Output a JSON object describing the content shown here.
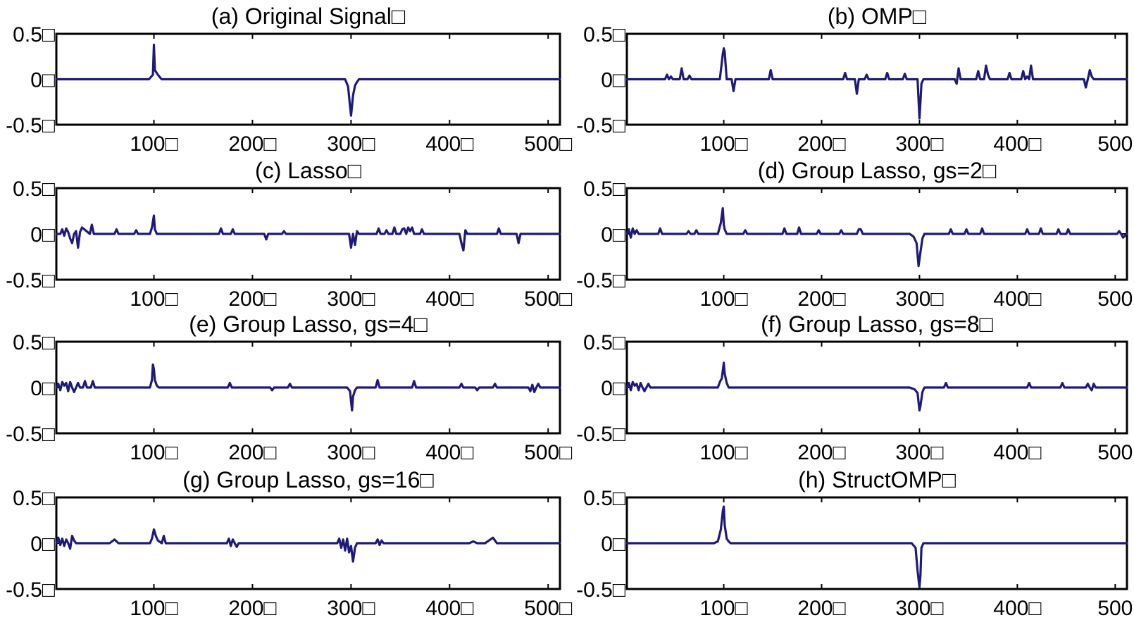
{
  "figure": {
    "line_color": "#1f1a7a",
    "layout": "4 rows x 2 columns"
  },
  "chart_data": [
    {
      "type": "line",
      "title": "(a) Original Signal□",
      "xlim": [
        1,
        512
      ],
      "ylim": [
        -0.5,
        0.5
      ],
      "xticks": [
        "100□",
        "200□",
        "300□",
        "400□",
        "500□"
      ],
      "xtick_values": [
        100,
        200,
        300,
        400,
        500
      ],
      "yticks": [
        "0.5□",
        "0□",
        "-0.5□"
      ],
      "ytick_values": [
        0.5,
        0,
        -0.5
      ],
      "series": [
        {
          "x": [
            1,
            95,
            99,
            100,
            101,
            104,
            107,
            108,
            294,
            297,
            299,
            300,
            302,
            304,
            306,
            308,
            512
          ],
          "values": [
            0,
            0,
            0.05,
            0.38,
            0.1,
            0.05,
            0.01,
            0,
            0,
            -0.08,
            -0.3,
            -0.4,
            -0.18,
            -0.07,
            -0.03,
            0,
            0
          ]
        }
      ]
    },
    {
      "type": "line",
      "title": "(b) OMP□",
      "xlim": [
        1,
        512
      ],
      "ylim": [
        -0.5,
        0.5
      ],
      "xticks": [
        "100□",
        "200□",
        "300□",
        "400□",
        "500"
      ],
      "xtick_values": [
        100,
        200,
        300,
        400,
        500
      ],
      "yticks": [
        "0.5□",
        "0□",
        "-0.5□"
      ],
      "ytick_values": [
        0.5,
        0,
        -0.5
      ],
      "series": [
        {
          "x": [
            1,
            40,
            42,
            44,
            46,
            48,
            55,
            57,
            59,
            63,
            65,
            67,
            96,
            99,
            100,
            101,
            103,
            108,
            110,
            112,
            146,
            148,
            150,
            222,
            224,
            226,
            234,
            236,
            238,
            244,
            246,
            248,
            265,
            267,
            269,
            283,
            285,
            287,
            298,
            300,
            301,
            302,
            304,
            336,
            338,
            340,
            342,
            358,
            360,
            362,
            366,
            368,
            370,
            372,
            390,
            392,
            394,
            404,
            406,
            408,
            410,
            412,
            414,
            416,
            468,
            470,
            472,
            474,
            476,
            478,
            512
          ],
          "values": [
            0,
            0,
            0.05,
            0,
            0.03,
            0,
            0,
            0.12,
            0,
            0,
            0.04,
            0,
            0,
            0.28,
            0.34,
            0.3,
            0,
            0,
            -0.13,
            0,
            0,
            0.1,
            0,
            0,
            0.07,
            0,
            0,
            -0.16,
            0,
            0,
            0.05,
            0,
            0,
            0.07,
            0,
            0,
            0.06,
            0,
            0,
            -0.43,
            -0.25,
            -0.05,
            0,
            0,
            -0.05,
            0.12,
            0,
            0,
            0.09,
            0,
            0,
            0.15,
            0.05,
            0,
            0,
            0.07,
            0,
            0,
            0.09,
            0,
            0.03,
            0,
            0.15,
            0,
            0,
            -0.09,
            0,
            0.1,
            0.03,
            0,
            0
          ]
        }
      ]
    },
    {
      "type": "line",
      "title": "(c) Lasso□",
      "xlim": [
        1,
        512
      ],
      "ylim": [
        -0.5,
        0.5
      ],
      "xticks": [
        "100□",
        "200□",
        "300□",
        "400□",
        "500□"
      ],
      "xtick_values": [
        100,
        200,
        300,
        400,
        500
      ],
      "yticks": [
        "0.5□",
        "0□",
        "-0.5□"
      ],
      "ytick_values": [
        0.5,
        0,
        -0.5
      ],
      "series": [
        {
          "x": [
            1,
            5,
            7,
            9,
            11,
            13,
            15,
            17,
            19,
            21,
            23,
            25,
            27,
            35,
            37,
            39,
            60,
            62,
            64,
            80,
            82,
            84,
            96,
            98,
            100,
            101,
            103,
            166,
            168,
            170,
            178,
            180,
            182,
            212,
            214,
            216,
            230,
            232,
            234,
            298,
            300,
            302,
            304,
            306,
            308,
            326,
            328,
            330,
            334,
            336,
            338,
            342,
            344,
            346,
            350,
            352,
            354,
            356,
            358,
            360,
            362,
            364,
            370,
            372,
            374,
            410,
            412,
            414,
            416,
            418,
            448,
            450,
            452,
            468,
            470,
            472,
            512
          ],
          "values": [
            0,
            0,
            0.05,
            -0.02,
            0.06,
            0.02,
            -0.05,
            -0.1,
            0,
            0.03,
            -0.15,
            0.02,
            0.07,
            0,
            0.1,
            0,
            0,
            0.05,
            0,
            0,
            0.04,
            0,
            0,
            0.07,
            0.2,
            0.05,
            0,
            0,
            0.06,
            0,
            0,
            0.05,
            0,
            0,
            -0.06,
            0,
            0,
            0.03,
            0,
            0,
            -0.15,
            0,
            -0.12,
            0.03,
            0,
            0,
            0.06,
            0,
            0,
            0.04,
            0,
            0,
            0.07,
            0,
            0,
            0.05,
            0.06,
            0,
            0.07,
            0.03,
            0.07,
            0,
            0,
            0.05,
            0,
            0,
            -0.1,
            -0.18,
            0.04,
            0,
            0,
            0.06,
            0,
            0,
            -0.1,
            0,
            0
          ]
        }
      ]
    },
    {
      "type": "line",
      "title": "(d) Group Lasso, gs=2□",
      "xlim": [
        1,
        512
      ],
      "ylim": [
        -0.5,
        0.5
      ],
      "xticks": [
        "100□",
        "200□",
        "300□",
        "400□",
        "500"
      ],
      "xtick_values": [
        100,
        200,
        300,
        400,
        500
      ],
      "yticks": [
        "0.5□",
        "0□",
        "-0.5□"
      ],
      "ytick_values": [
        0.5,
        0,
        -0.5
      ],
      "series": [
        {
          "x": [
            1,
            3,
            5,
            7,
            9,
            11,
            13,
            33,
            35,
            37,
            62,
            64,
            66,
            70,
            72,
            74,
            94,
            97,
            99,
            100,
            101,
            103,
            120,
            122,
            124,
            160,
            162,
            164,
            175,
            177,
            179,
            195,
            197,
            199,
            218,
            220,
            222,
            236,
            238,
            240,
            242,
            290,
            294,
            297,
            299,
            301,
            303,
            305,
            330,
            332,
            334,
            346,
            348,
            350,
            362,
            364,
            366,
            408,
            410,
            412,
            422,
            424,
            426,
            440,
            442,
            444,
            450,
            452,
            454,
            502,
            504,
            506,
            508,
            512
          ],
          "values": [
            0,
            0.05,
            -0.04,
            0.06,
            0,
            0.04,
            0,
            0,
            0.06,
            0,
            0,
            0.03,
            0,
            0,
            0.04,
            0,
            0,
            0.12,
            0.28,
            0.1,
            0.05,
            0,
            0,
            0.04,
            0,
            0,
            0.06,
            0,
            0,
            0.07,
            0,
            0,
            0.04,
            0,
            0,
            0.04,
            0,
            0,
            0.05,
            0.05,
            0,
            0,
            -0.03,
            -0.1,
            -0.35,
            -0.2,
            -0.05,
            0,
            0,
            0.05,
            0,
            0,
            0.05,
            0,
            0,
            0.06,
            0,
            0,
            0.05,
            0,
            0,
            0.06,
            0,
            0,
            0.05,
            0,
            0,
            0.05,
            0,
            0,
            0.03,
            0,
            -0.04,
            0
          ]
        }
      ]
    },
    {
      "type": "line",
      "title": "(e) Group Lasso, gs=4□",
      "xlim": [
        1,
        512
      ],
      "ylim": [
        -0.5,
        0.5
      ],
      "xticks": [
        "100□",
        "200□",
        "300□",
        "400□",
        "500□"
      ],
      "xtick_values": [
        100,
        200,
        300,
        400,
        500
      ],
      "yticks": [
        "0.5□",
        "0□",
        "-0.5□"
      ],
      "ytick_values": [
        0.5,
        0,
        -0.5
      ],
      "series": [
        {
          "x": [
            1,
            3,
            5,
            7,
            9,
            11,
            13,
            15,
            17,
            19,
            21,
            23,
            25,
            28,
            30,
            32,
            36,
            38,
            40,
            96,
            98,
            99,
            100,
            101,
            103,
            105,
            175,
            177,
            179,
            218,
            220,
            222,
            236,
            238,
            240,
            296,
            299,
            300,
            301,
            302,
            304,
            306,
            325,
            327,
            329,
            362,
            364,
            366,
            410,
            412,
            414,
            426,
            428,
            430,
            444,
            446,
            448,
            480,
            482,
            484,
            486,
            488,
            490,
            492,
            500,
            512
          ],
          "values": [
            0,
            0.04,
            -0.03,
            0.06,
            0.02,
            0.05,
            -0.04,
            0.06,
            0,
            -0.05,
            0,
            0.05,
            0,
            0,
            0.07,
            0,
            0,
            0.07,
            0,
            0,
            0.08,
            0.25,
            0.2,
            0.08,
            0.02,
            0,
            0,
            0.05,
            0,
            0,
            -0.03,
            0,
            0,
            0.04,
            0,
            0,
            -0.04,
            -0.15,
            -0.25,
            -0.1,
            -0.03,
            0,
            0,
            0.08,
            0,
            0,
            0.07,
            0,
            0,
            0.04,
            0,
            0,
            -0.03,
            0,
            0,
            0.04,
            0,
            0,
            -0.04,
            0.03,
            -0.05,
            0,
            0.04,
            0,
            0,
            0
          ]
        }
      ]
    },
    {
      "type": "line",
      "title": "(f) Group Lasso, gs=8□",
      "xlim": [
        1,
        512
      ],
      "ylim": [
        -0.5,
        0.5
      ],
      "xticks": [
        "100□",
        "200□",
        "300□",
        "400□",
        "500"
      ],
      "xtick_values": [
        100,
        200,
        300,
        400,
        500
      ],
      "yticks": [
        "0.5□",
        "0□",
        "-0.5□"
      ],
      "ytick_values": [
        0.5,
        0,
        -0.5
      ],
      "series": [
        {
          "x": [
            1,
            3,
            5,
            7,
            9,
            11,
            13,
            15,
            17,
            19,
            21,
            23,
            25,
            94,
            96,
            98,
            100,
            101,
            103,
            105,
            290,
            295,
            298,
            300,
            301,
            303,
            305,
            325,
            327,
            329,
            410,
            412,
            414,
            444,
            446,
            448,
            470,
            472,
            474,
            476,
            478,
            480,
            482,
            500,
            512
          ],
          "values": [
            0,
            0.05,
            -0.03,
            0.06,
            0.02,
            0.04,
            -0.03,
            0.05,
            0,
            -0.04,
            0,
            0.04,
            0,
            0,
            0.06,
            0.1,
            0.27,
            0.15,
            0.05,
            0,
            0,
            -0.02,
            -0.06,
            -0.25,
            -0.2,
            -0.05,
            0,
            0,
            0.05,
            0,
            0,
            0.05,
            0,
            0,
            0.05,
            0,
            0,
            0.04,
            0,
            -0.03,
            0.04,
            0,
            0,
            0,
            0
          ]
        }
      ]
    },
    {
      "type": "line",
      "title": "(g) Group Lasso, gs=16□",
      "xlim": [
        1,
        512
      ],
      "ylim": [
        -0.5,
        0.5
      ],
      "xticks": [
        "100□",
        "200□",
        "300□",
        "400□",
        "500□"
      ],
      "xtick_values": [
        100,
        200,
        300,
        400,
        500
      ],
      "yticks": [
        "0.5□",
        "0□",
        "-0.5□"
      ],
      "ytick_values": [
        0.5,
        0,
        -0.5
      ],
      "series": [
        {
          "x": [
            1,
            3,
            5,
            7,
            9,
            11,
            13,
            15,
            17,
            19,
            21,
            55,
            60,
            64,
            96,
            98,
            100,
            102,
            104,
            108,
            110,
            112,
            174,
            176,
            178,
            180,
            182,
            184,
            186,
            286,
            288,
            290,
            292,
            294,
            296,
            298,
            300,
            302,
            304,
            306,
            325,
            327,
            329,
            331,
            333,
            420,
            424,
            428,
            436,
            440,
            444,
            448,
            512
          ],
          "values": [
            0,
            0.06,
            -0.02,
            0.05,
            -0.03,
            0.04,
            0,
            -0.06,
            0.08,
            0.03,
            0,
            0,
            0.04,
            0,
            0,
            0.05,
            0.15,
            0.08,
            0.03,
            0,
            0.08,
            0,
            0,
            0.05,
            -0.03,
            0.04,
            0,
            -0.04,
            0,
            0,
            0.05,
            -0.05,
            0.04,
            -0.08,
            0.05,
            -0.1,
            -0.03,
            -0.2,
            -0.05,
            0,
            0,
            0.04,
            -0.02,
            0.03,
            0,
            0,
            0.02,
            0,
            0,
            0.03,
            0.06,
            0,
            0
          ]
        }
      ]
    },
    {
      "type": "line",
      "title": "(h) StructOMP□",
      "xlim": [
        1,
        512
      ],
      "ylim": [
        -0.5,
        0.5
      ],
      "xticks": [
        "100□",
        "200□",
        "300□",
        "400□",
        "500"
      ],
      "xtick_values": [
        100,
        200,
        300,
        400,
        500
      ],
      "yticks": [
        "0.5□",
        "0□",
        "-0.5□"
      ],
      "ytick_values": [
        0.5,
        0,
        -0.5
      ],
      "series": [
        {
          "x": [
            1,
            90,
            94,
            97,
            99,
            100,
            101,
            103,
            105,
            107,
            292,
            296,
            298,
            300,
            301,
            302,
            304,
            306,
            512
          ],
          "values": [
            0,
            0,
            0.02,
            0.15,
            0.35,
            0.4,
            0.2,
            0.05,
            0.02,
            0,
            0,
            -0.05,
            -0.3,
            -0.48,
            -0.35,
            -0.05,
            0,
            0,
            0
          ]
        }
      ]
    }
  ]
}
